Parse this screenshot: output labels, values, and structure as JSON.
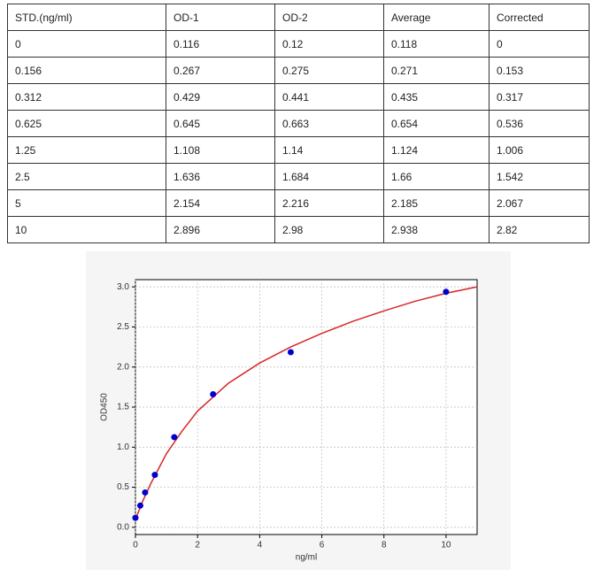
{
  "table": {
    "header": [
      "STD.(ng/ml)",
      "OD-1",
      "OD-2",
      "Average",
      "Corrected"
    ],
    "rows": [
      [
        "0",
        "0.116",
        "0.12",
        "0.118",
        "0"
      ],
      [
        "0.156",
        "0.267",
        "0.275",
        "0.271",
        "0.153"
      ],
      [
        "0.312",
        "0.429",
        "0.441",
        "0.435",
        "0.317"
      ],
      [
        "0.625",
        "0.645",
        "0.663",
        "0.654",
        "0.536"
      ],
      [
        "1.25",
        "1.108",
        "1.14",
        "1.124",
        "1.006"
      ],
      [
        "2.5",
        "1.636",
        "1.684",
        "1.66",
        "1.542"
      ],
      [
        "5",
        "2.154",
        "2.216",
        "2.185",
        "2.067"
      ],
      [
        "10",
        "2.896",
        "2.98",
        "2.938",
        "2.82"
      ]
    ]
  },
  "chart_data": {
    "type": "scatter",
    "x_label": "ng/ml",
    "y_label": "OD450",
    "series": [
      {
        "type": "scatter",
        "color": "#0000cc",
        "x": [
          0,
          0.156,
          0.312,
          0.625,
          1.25,
          2.5,
          5,
          10
        ],
        "values": [
          0.118,
          0.271,
          0.435,
          0.654,
          1.124,
          1.66,
          2.185,
          2.938
        ]
      },
      {
        "type": "line",
        "color": "#d62728",
        "x": [
          0,
          0.25,
          0.5,
          1,
          1.5,
          2,
          3,
          4,
          5,
          6,
          7,
          8,
          9,
          10,
          11
        ],
        "values": [
          0.1,
          0.34,
          0.55,
          0.92,
          1.2,
          1.45,
          1.8,
          2.05,
          2.25,
          2.42,
          2.57,
          2.7,
          2.82,
          2.92,
          3.0
        ]
      }
    ],
    "xlim": [
      0,
      11
    ],
    "ylim": [
      -0.09,
      3.09
    ],
    "xticks": [
      0,
      2,
      4,
      6,
      8,
      10
    ],
    "yticks": [
      {
        "value": 0,
        "label": "0.0"
      },
      {
        "value": 0.5,
        "label": "0.5"
      },
      {
        "value": 1,
        "label": "1.0"
      },
      {
        "value": 1.5,
        "label": "1.5"
      },
      {
        "value": 2,
        "label": "2.0"
      },
      {
        "value": 2.5,
        "label": "2.5"
      },
      {
        "value": 3,
        "label": "3.0"
      }
    ],
    "grid": true
  }
}
